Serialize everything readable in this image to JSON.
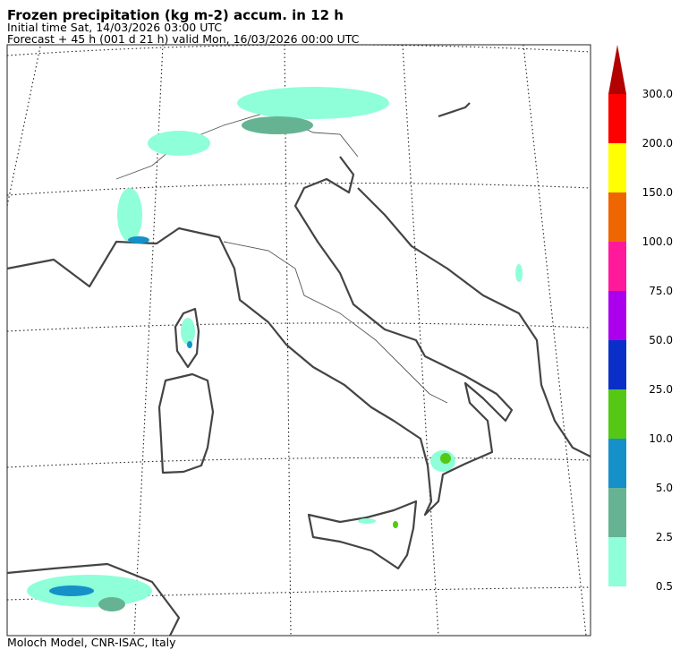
{
  "header": {
    "title": "Frozen precipitation (kg m-2) accum. in 12 h",
    "initial_time": "Initial time  Sat, 14/03/2026  03:00 UTC",
    "forecast": "Forecast  +  45 h  (001 d 21 h)  valid Mon, 16/03/2026 00:00 UTC"
  },
  "colorbar": {
    "levels": [
      {
        "value": 0.5,
        "label": "0.5"
      },
      {
        "value": 2.5,
        "label": "2.5"
      },
      {
        "value": 5,
        "label": "5.0"
      },
      {
        "value": 10,
        "label": "10.0"
      },
      {
        "value": 25,
        "label": "25.0"
      },
      {
        "value": 50,
        "label": "50.0"
      },
      {
        "value": 75,
        "label": "75.0"
      },
      {
        "value": 100,
        "label": "100.0"
      },
      {
        "value": 150,
        "label": "150.0"
      },
      {
        "value": 200,
        "label": "200.0"
      },
      {
        "value": 300,
        "label": "300.0"
      }
    ],
    "colors": [
      "#8effd8",
      "#66b394",
      "#1590c8",
      "#55c815",
      "#0a2fc8",
      "#aa00ee",
      "#ff1a9c",
      "#ee6600",
      "#ffff00",
      "#ff0000",
      "#b30000"
    ]
  },
  "footer": "Moloch Model, CNR-ISAC, Italy"
}
